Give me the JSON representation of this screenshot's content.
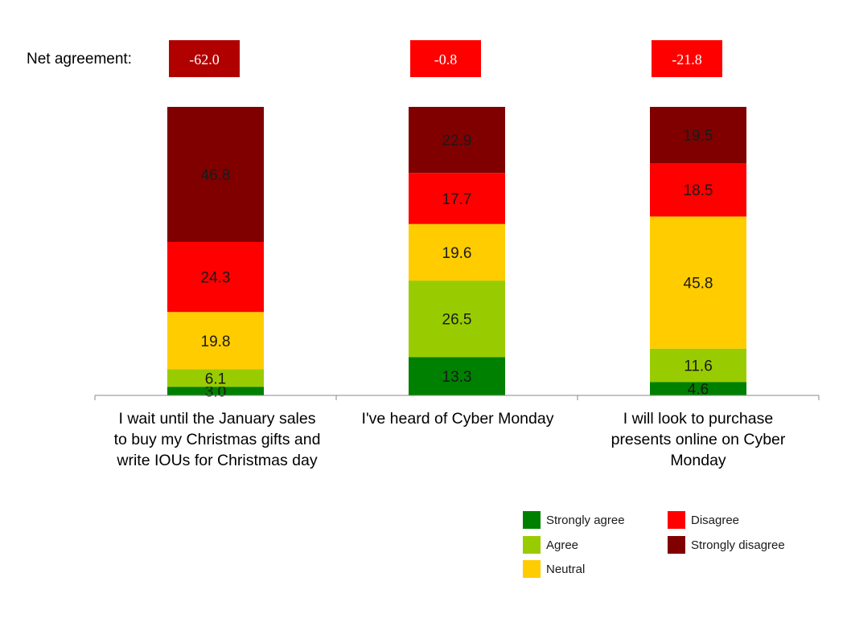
{
  "net_agreement": {
    "label": "Net agreement:",
    "values": [
      "-62.0",
      "-0.8",
      "-21.8"
    ],
    "box_colors": [
      "#b00000",
      "#ff0000",
      "#ff0000"
    ]
  },
  "chart_data": {
    "type": "bar",
    "stacked": true,
    "categories": [
      [
        "I wait until the January sales",
        "to buy my Christmas gifts and",
        "write  IOUs for Christmas day"
      ],
      [
        "I've heard of Cyber Monday"
      ],
      [
        "I will look to purchase",
        "presents online on Cyber",
        "Monday"
      ]
    ],
    "series": [
      {
        "name": "Strongly agree",
        "color": "#008000",
        "values": [
          3.0,
          13.3,
          4.6
        ]
      },
      {
        "name": "Agree",
        "color": "#99cc00",
        "values": [
          6.1,
          26.5,
          11.6
        ]
      },
      {
        "name": "Neutral",
        "color": "#ffcc00",
        "values": [
          19.8,
          19.6,
          45.8
        ]
      },
      {
        "name": "Disagree",
        "color": "#ff0000",
        "values": [
          24.3,
          17.7,
          18.5
        ]
      },
      {
        "name": "Strongly disagree",
        "color": "#800000",
        "values": [
          46.8,
          22.9,
          19.5
        ]
      }
    ],
    "ylim": [
      0,
      100
    ],
    "grid": false,
    "legend_position": "bottom-right",
    "title": "",
    "xlabel": "",
    "ylabel": ""
  }
}
